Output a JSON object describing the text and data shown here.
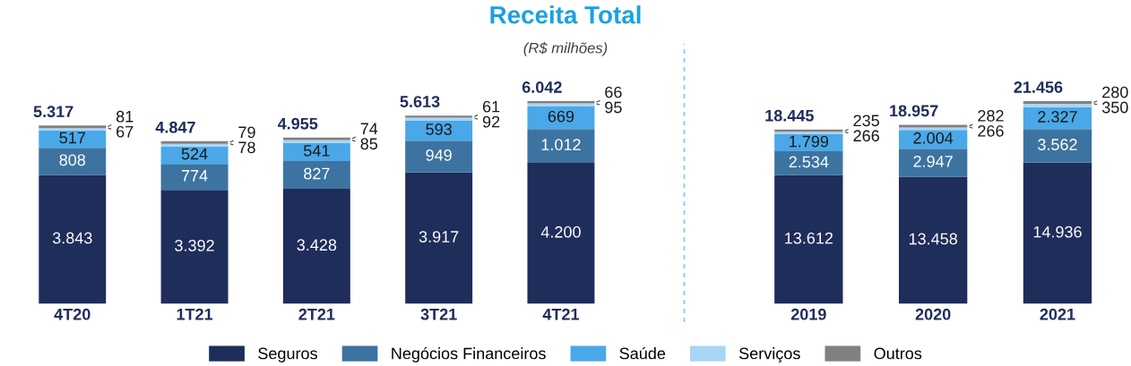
{
  "chart_data": [
    {
      "type": "bar",
      "title": "Receita Total",
      "subtitle": "(R$ milhões)",
      "stacked": true,
      "tick_labels": "x",
      "legend": "bottom",
      "grid": false,
      "categories": [
        "4T20",
        "1T21",
        "2T21",
        "3T21",
        "4T21"
      ],
      "series": [
        {
          "name": "Seguros",
          "color": "#1f2d5a",
          "values": [
            3843,
            3392,
            3428,
            3917,
            4200
          ],
          "value_labels": [
            "3.843",
            "3.392",
            "3.428",
            "3.917",
            "4.200"
          ]
        },
        {
          "name": "Negócios Financeiros",
          "color": "#3d73a0",
          "values": [
            808,
            774,
            827,
            949,
            1012
          ],
          "value_labels": [
            "808",
            "774",
            "827",
            "949",
            "1.012"
          ]
        },
        {
          "name": "Saúde",
          "color": "#4aa8e8",
          "values": [
            517,
            524,
            541,
            593,
            669
          ],
          "value_labels": [
            "517",
            "524",
            "541",
            "593",
            "669"
          ]
        },
        {
          "name": "Serviços",
          "color": "#a9d5f5",
          "values": [
            67,
            78,
            85,
            92,
            95
          ],
          "value_labels": [
            "67",
            "78",
            "85",
            "92",
            "95"
          ]
        },
        {
          "name": "Outros",
          "color": "#808080",
          "values": [
            81,
            79,
            74,
            61,
            66
          ],
          "value_labels": [
            "81",
            "79",
            "74",
            "61",
            "66"
          ]
        }
      ],
      "totals": [
        "5.317",
        "4.847",
        "4.955",
        "5.613",
        "6.042"
      ]
    },
    {
      "type": "bar",
      "stacked": true,
      "tick_labels": "x",
      "grid": false,
      "categories": [
        "2019",
        "2020",
        "2021"
      ],
      "series": [
        {
          "color": "#1f2d5a",
          "values": [
            13612,
            13458,
            14936
          ],
          "value_labels": [
            "13.612",
            "13.458",
            "14.936"
          ]
        },
        {
          "color": "#3d73a0",
          "values": [
            2534,
            2947,
            3562
          ],
          "value_labels": [
            "2.534",
            "2.947",
            "3.562"
          ]
        },
        {
          "color": "#4aa8e8",
          "values": [
            1799,
            2004,
            2327
          ],
          "value_labels": [
            "1.799",
            "2.004",
            "2.327"
          ]
        },
        {
          "color": "#a9d5f5",
          "values": [
            266,
            266,
            350
          ],
          "value_labels": [
            "266",
            "266",
            "350"
          ]
        },
        {
          "color": "#808080",
          "values": [
            235,
            282,
            280
          ],
          "value_labels": [
            "235",
            "282",
            "280"
          ]
        }
      ],
      "totals": [
        "18.445",
        "18.957",
        "21.456"
      ]
    }
  ]
}
